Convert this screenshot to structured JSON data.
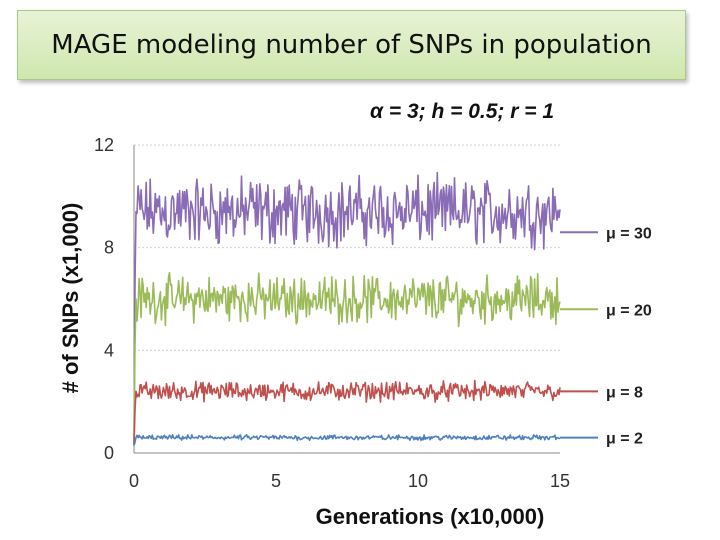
{
  "slide_title": "MAGE modeling number of SNPs in population",
  "chart_data": {
    "type": "line",
    "title": "α = 3; h = 0.5; r = 1",
    "xlabel": "Generations (x10,000)",
    "ylabel": "# of SNPs (x1,000)",
    "xlim": [
      0,
      15
    ],
    "ylim": [
      0,
      12
    ],
    "xticks": [
      "0",
      "5",
      "10",
      "15"
    ],
    "yticks": [
      "0",
      "4",
      "8",
      "12"
    ],
    "series": [
      {
        "name": "μ = 30",
        "color": "#8a6bb5",
        "mean": 9.4,
        "amplitude": 1.6,
        "x": [
          0,
          15
        ]
      },
      {
        "name": "μ = 20",
        "color": "#9bbb59",
        "mean": 6.0,
        "amplitude": 1.1,
        "x": [
          0,
          15
        ]
      },
      {
        "name": "μ = 8",
        "color": "#c0504d",
        "mean": 2.4,
        "amplitude": 0.45,
        "x": [
          0,
          15
        ]
      },
      {
        "name": "μ = 2",
        "color": "#4f81bd",
        "mean": 0.6,
        "amplitude": 0.12,
        "x": [
          0,
          15
        ]
      }
    ]
  }
}
